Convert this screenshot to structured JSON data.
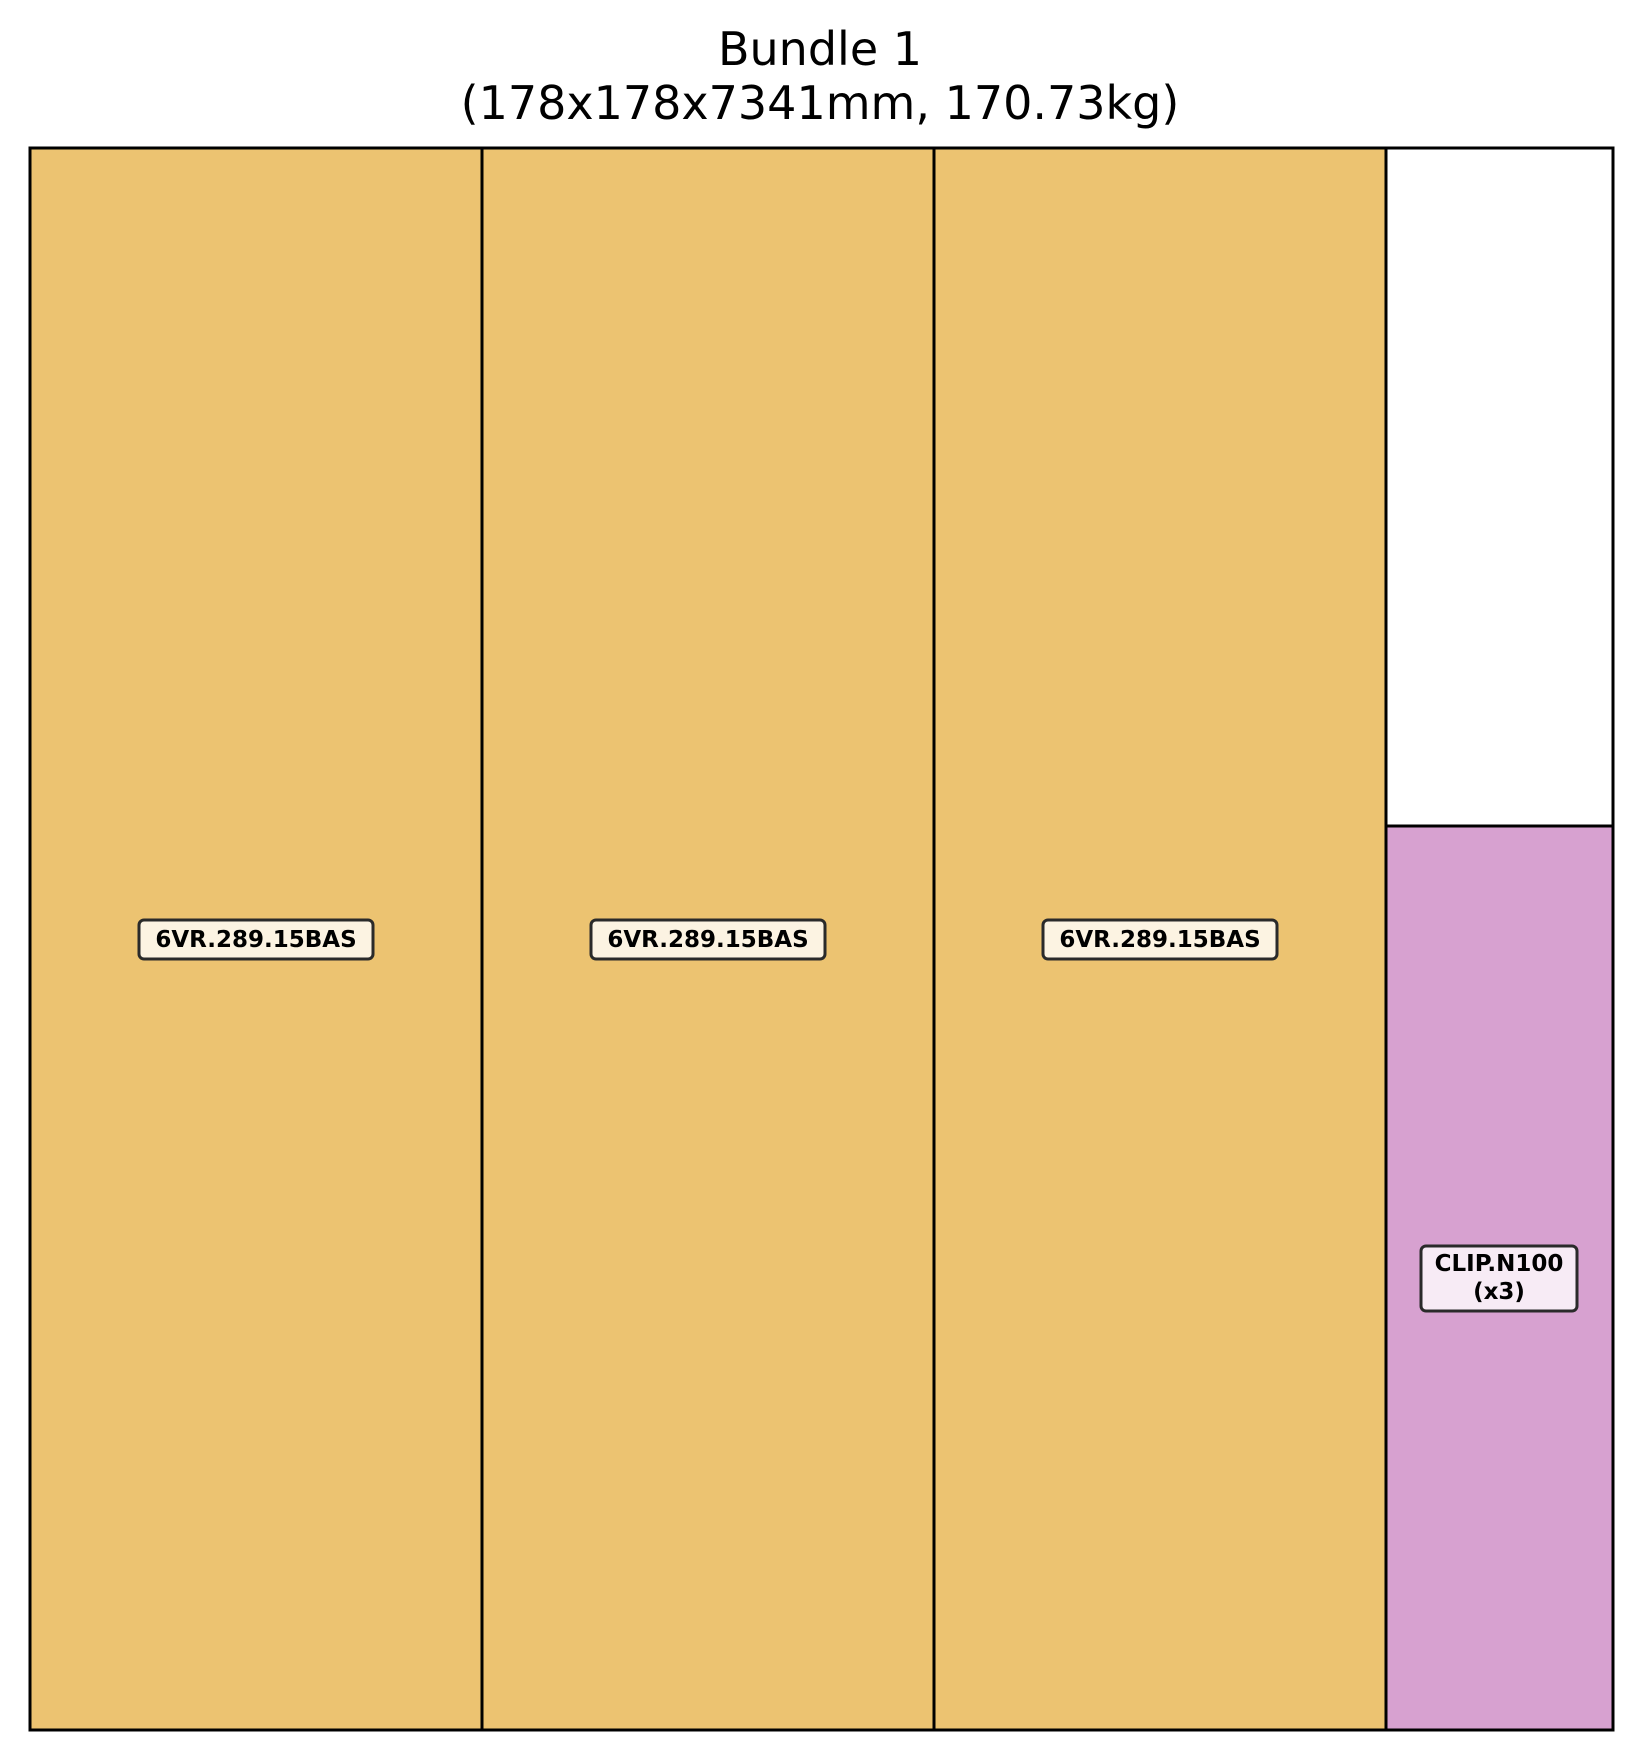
{
  "title": {
    "line1": "Bundle 1",
    "line2": "(178x178x7341mm, 170.73kg)"
  },
  "colors": {
    "bar_fill": "#ECC371",
    "clip_fill": "#D7A1D0",
    "empty_fill": "#FFFFFF",
    "outline": "#000000",
    "bar_label_bg": "#FCF3E2",
    "clip_label_bg": "#F7EBF5",
    "label_border": "#2A2A2A"
  },
  "pieces": [
    {
      "label": "6VR.289.15BAS",
      "type": "bar"
    },
    {
      "label": "6VR.289.15BAS",
      "type": "bar"
    },
    {
      "label": "6VR.289.15BAS",
      "type": "bar"
    },
    {
      "label": "CLIP.N100",
      "quantity": "(x3)",
      "type": "clip"
    }
  ]
}
